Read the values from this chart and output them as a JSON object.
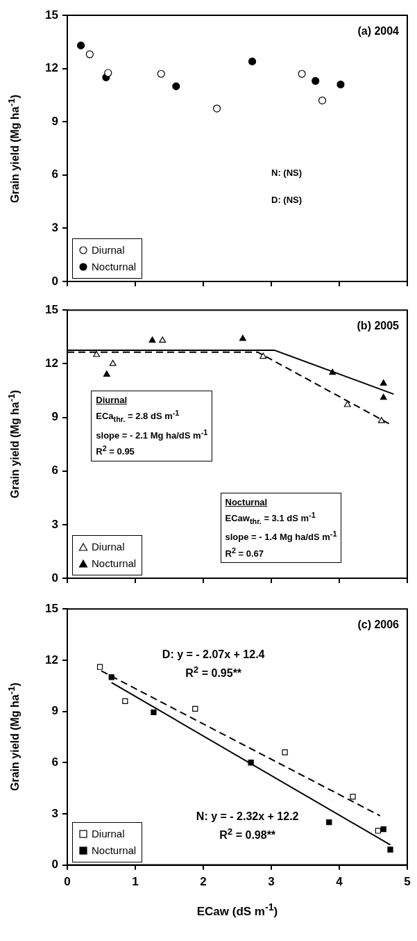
{
  "chart_data": [
    {
      "type": "scatter",
      "title": "(a) 2004",
      "ylabel": "Grain yield (Mg ha$^{-1}$)",
      "xlim": [
        0,
        5
      ],
      "xticks": [
        0,
        1,
        2,
        3,
        4,
        5
      ],
      "ylim": [
        0,
        15
      ],
      "yticks": [
        0,
        3,
        6,
        9,
        12,
        15
      ],
      "grid": false,
      "legend": "bottom left",
      "tick_labels": "y",
      "annotations": [
        "N: (NS)",
        "D: (NS)"
      ],
      "series": [
        {
          "name": "Diurnal",
          "color": "#ffffff",
          "marker": "circle",
          "x": [
            0.33,
            0.6,
            1.38,
            2.2,
            3.45,
            3.75
          ],
          "values": [
            12.8,
            11.75,
            11.7,
            9.75,
            11.7,
            10.2
          ]
        },
        {
          "name": "Nocturnal",
          "color": "#000000",
          "marker": "circle",
          "x": [
            0.2,
            0.57,
            1.6,
            2.72,
            3.65,
            4.02
          ],
          "values": [
            13.3,
            11.5,
            11.0,
            12.4,
            11.3,
            11.1
          ]
        }
      ]
    },
    {
      "type": "scatter",
      "title": "(b) 2005",
      "ylabel": "Grain yield (Mg ha$^{-1}$)",
      "xlim": [
        0,
        5
      ],
      "xticks": [
        0,
        1,
        2,
        3,
        4,
        5
      ],
      "ylim": [
        0,
        15
      ],
      "yticks": [
        0,
        3,
        6,
        9,
        12,
        15
      ],
      "grid": false,
      "legend": "bottom left",
      "tick_labels": "y",
      "annotations": [
        "Diurnal\nECa$_{thr.}$ = 2.8 dS m$^{-1}$\nslope = - 2.1 Mg ha/dS m$^{-1}$\nR$^{2}$ = 0.95",
        "Nocturnal\nECaw$_{thr.}$ = 3.1 dS m$^{-1}$\nslope = - 1.4 Mg ha/dS m$^{-1}$\nR$^{2}$ = 0.67"
      ],
      "series": [
        {
          "name": "Diurnal",
          "color": "#ffffff",
          "marker": "triangle",
          "x": [
            0.43,
            0.67,
            1.4,
            2.88,
            4.12,
            4.62
          ],
          "values": [
            12.5,
            12.0,
            13.3,
            12.4,
            9.7,
            8.8
          ]
        },
        {
          "name": "Nocturnal",
          "color": "#000000",
          "marker": "triangle",
          "x": [
            0.58,
            1.25,
            2.58,
            3.9,
            4.65,
            4.65
          ],
          "values": [
            11.4,
            13.3,
            13.4,
            11.5,
            10.9,
            10.1
          ]
        },
        {
          "type": "line",
          "color": "#000000",
          "marker": "none",
          "line_style": "dashed",
          "x": [
            0,
            2.8,
            4.73
          ],
          "values": [
            12.65,
            12.65,
            8.65
          ]
        },
        {
          "type": "line",
          "color": "#000000",
          "marker": "none",
          "line_style": "solid",
          "x": [
            0,
            3.05,
            4.8
          ],
          "values": [
            12.75,
            12.75,
            10.3
          ]
        }
      ]
    },
    {
      "type": "scatter",
      "title": "(c) 2006",
      "ylabel": "Grain yield (Mg ha$^{-1}$)",
      "xlabel": "ECaw (dS m$^{-1}$)",
      "xlim": [
        0,
        5
      ],
      "xticks": [
        0,
        1,
        2,
        3,
        4,
        5
      ],
      "ylim": [
        0,
        15
      ],
      "yticks": [
        0,
        3,
        6,
        9,
        12,
        15
      ],
      "grid": false,
      "legend": "bottom left",
      "annotations": [
        "D: y = - 2.07x + 12.4\nR$^{2}$ = 0.95**",
        "N: y = - 2.32x + 12.2\nR$^{2}$ = 0.98**"
      ],
      "series": [
        {
          "name": "Diurnal",
          "color": "#ffffff",
          "marker": "square",
          "x": [
            0.48,
            0.85,
            1.88,
            3.2,
            4.2,
            4.57
          ],
          "values": [
            11.6,
            9.6,
            9.15,
            6.6,
            4.0,
            2.0
          ]
        },
        {
          "name": "Nocturnal",
          "color": "#000000",
          "marker": "square",
          "x": [
            0.65,
            1.27,
            2.7,
            3.85,
            4.65,
            4.75
          ],
          "values": [
            11.0,
            8.95,
            6.0,
            2.5,
            2.1,
            0.9
          ]
        },
        {
          "type": "line",
          "color": "#000000",
          "marker": "none",
          "line_style": "dashed",
          "x": [
            0.5,
            4.6
          ],
          "values": [
            11.37,
            2.88
          ]
        },
        {
          "type": "line",
          "color": "#000000",
          "marker": "none",
          "line_style": "solid",
          "x": [
            0.65,
            4.75
          ],
          "values": [
            10.69,
            1.18
          ]
        }
      ]
    }
  ]
}
